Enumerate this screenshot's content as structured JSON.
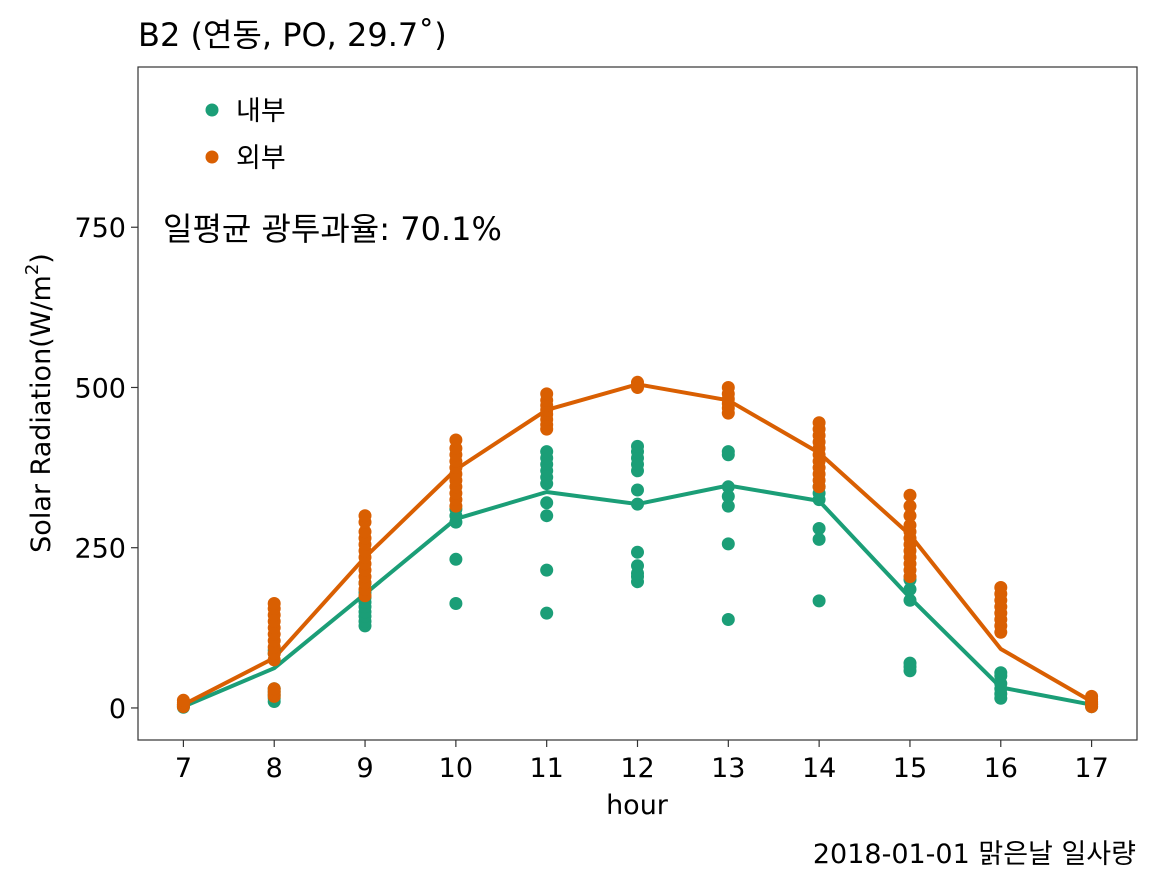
{
  "chart_data": {
    "type": "scatter",
    "title": "B2 (연동, PO, 29.7˚)",
    "xlabel": "hour",
    "ylabel_main": "Solar Radiation",
    "ylabel_unit_prefix": "(W/m",
    "ylabel_unit_sup": "2",
    "ylabel_unit_suffix": ")",
    "caption": "2018-01-01 맑은날 일사량",
    "annotation": "일평균 광투과율: 70.1%",
    "xlim": [
      6.5,
      17.5
    ],
    "ylim": [
      -50,
      1000
    ],
    "x_ticks": [
      7,
      8,
      9,
      10,
      11,
      12,
      13,
      14,
      15,
      16,
      17
    ],
    "y_ticks": [
      0,
      250,
      500,
      750
    ],
    "grid": false,
    "legend_position": "top-left",
    "series": [
      {
        "name": "내부",
        "color": "#1b9e77",
        "mean": [
          [
            7,
            2
          ],
          [
            8,
            62
          ],
          [
            9,
            178
          ],
          [
            10,
            295
          ],
          [
            11,
            337
          ],
          [
            12,
            318
          ],
          [
            13,
            347
          ],
          [
            14,
            323
          ],
          [
            15,
            172
          ],
          [
            16,
            32
          ],
          [
            17,
            5
          ]
        ],
        "points": [
          [
            7,
            1
          ],
          [
            7,
            3
          ],
          [
            7,
            5
          ],
          [
            8,
            10
          ],
          [
            8,
            15
          ],
          [
            8,
            20
          ],
          [
            8,
            25
          ],
          [
            8,
            30
          ],
          [
            8,
            85
          ],
          [
            8,
            90
          ],
          [
            9,
            128
          ],
          [
            9,
            135
          ],
          [
            9,
            143
          ],
          [
            9,
            150
          ],
          [
            9,
            158
          ],
          [
            9,
            165
          ],
          [
            9,
            172
          ],
          [
            9,
            180
          ],
          [
            9,
            195
          ],
          [
            10,
            163
          ],
          [
            10,
            232
          ],
          [
            10,
            290
          ],
          [
            10,
            300
          ],
          [
            10,
            310
          ],
          [
            11,
            148
          ],
          [
            11,
            215
          ],
          [
            11,
            300
          ],
          [
            11,
            320
          ],
          [
            11,
            350
          ],
          [
            11,
            360
          ],
          [
            11,
            370
          ],
          [
            11,
            380
          ],
          [
            11,
            390
          ],
          [
            11,
            400
          ],
          [
            12,
            197
          ],
          [
            12,
            205
          ],
          [
            12,
            210
          ],
          [
            12,
            222
          ],
          [
            12,
            243
          ],
          [
            12,
            318
          ],
          [
            12,
            340
          ],
          [
            12,
            370
          ],
          [
            12,
            380
          ],
          [
            12,
            390
          ],
          [
            12,
            400
          ],
          [
            12,
            408
          ],
          [
            13,
            138
          ],
          [
            13,
            256
          ],
          [
            13,
            315
          ],
          [
            13,
            330
          ],
          [
            13,
            345
          ],
          [
            13,
            395
          ],
          [
            13,
            400
          ],
          [
            14,
            167
          ],
          [
            14,
            263
          ],
          [
            14,
            280
          ],
          [
            14,
            325
          ],
          [
            14,
            335
          ],
          [
            14,
            345
          ],
          [
            15,
            58
          ],
          [
            15,
            64
          ],
          [
            15,
            70
          ],
          [
            15,
            168
          ],
          [
            15,
            185
          ],
          [
            15,
            200
          ],
          [
            16,
            15
          ],
          [
            16,
            22
          ],
          [
            16,
            30
          ],
          [
            16,
            38
          ],
          [
            16,
            50
          ],
          [
            16,
            55
          ],
          [
            17,
            2
          ],
          [
            17,
            5
          ],
          [
            17,
            8
          ]
        ]
      },
      {
        "name": "외부",
        "color": "#d95f02",
        "mean": [
          [
            7,
            5
          ],
          [
            8,
            78
          ],
          [
            9,
            235
          ],
          [
            10,
            372
          ],
          [
            11,
            465
          ],
          [
            12,
            505
          ],
          [
            13,
            480
          ],
          [
            14,
            398
          ],
          [
            15,
            270
          ],
          [
            16,
            92
          ],
          [
            17,
            10
          ]
        ],
        "points": [
          [
            7,
            2
          ],
          [
            7,
            5
          ],
          [
            7,
            8
          ],
          [
            7,
            12
          ],
          [
            8,
            18
          ],
          [
            8,
            22
          ],
          [
            8,
            26
          ],
          [
            8,
            30
          ],
          [
            8,
            75
          ],
          [
            8,
            85
          ],
          [
            8,
            95
          ],
          [
            8,
            105
          ],
          [
            8,
            115
          ],
          [
            8,
            125
          ],
          [
            8,
            135
          ],
          [
            8,
            145
          ],
          [
            8,
            155
          ],
          [
            8,
            163
          ],
          [
            9,
            175
          ],
          [
            9,
            185
          ],
          [
            9,
            195
          ],
          [
            9,
            205
          ],
          [
            9,
            215
          ],
          [
            9,
            225
          ],
          [
            9,
            235
          ],
          [
            9,
            245
          ],
          [
            9,
            255
          ],
          [
            9,
            265
          ],
          [
            9,
            275
          ],
          [
            9,
            290
          ],
          [
            9,
            300
          ],
          [
            10,
            315
          ],
          [
            10,
            325
          ],
          [
            10,
            335
          ],
          [
            10,
            345
          ],
          [
            10,
            355
          ],
          [
            10,
            365
          ],
          [
            10,
            375
          ],
          [
            10,
            385
          ],
          [
            10,
            395
          ],
          [
            10,
            405
          ],
          [
            10,
            418
          ],
          [
            11,
            435
          ],
          [
            11,
            442
          ],
          [
            11,
            450
          ],
          [
            11,
            458
          ],
          [
            11,
            465
          ],
          [
            11,
            472
          ],
          [
            11,
            480
          ],
          [
            11,
            490
          ],
          [
            12,
            500
          ],
          [
            12,
            505
          ],
          [
            12,
            508
          ],
          [
            13,
            460
          ],
          [
            13,
            468
          ],
          [
            13,
            475
          ],
          [
            13,
            482
          ],
          [
            13,
            490
          ],
          [
            13,
            500
          ],
          [
            14,
            345
          ],
          [
            14,
            355
          ],
          [
            14,
            365
          ],
          [
            14,
            375
          ],
          [
            14,
            385
          ],
          [
            14,
            395
          ],
          [
            14,
            405
          ],
          [
            14,
            415
          ],
          [
            14,
            425
          ],
          [
            14,
            435
          ],
          [
            14,
            445
          ],
          [
            15,
            205
          ],
          [
            15,
            215
          ],
          [
            15,
            225
          ],
          [
            15,
            235
          ],
          [
            15,
            245
          ],
          [
            15,
            255
          ],
          [
            15,
            265
          ],
          [
            15,
            275
          ],
          [
            15,
            285
          ],
          [
            15,
            300
          ],
          [
            15,
            315
          ],
          [
            15,
            332
          ],
          [
            16,
            118
          ],
          [
            16,
            128
          ],
          [
            16,
            138
          ],
          [
            16,
            148
          ],
          [
            16,
            158
          ],
          [
            16,
            168
          ],
          [
            16,
            178
          ],
          [
            16,
            188
          ],
          [
            17,
            2
          ],
          [
            17,
            6
          ],
          [
            17,
            10
          ],
          [
            17,
            14
          ],
          [
            17,
            18
          ]
        ]
      }
    ]
  }
}
